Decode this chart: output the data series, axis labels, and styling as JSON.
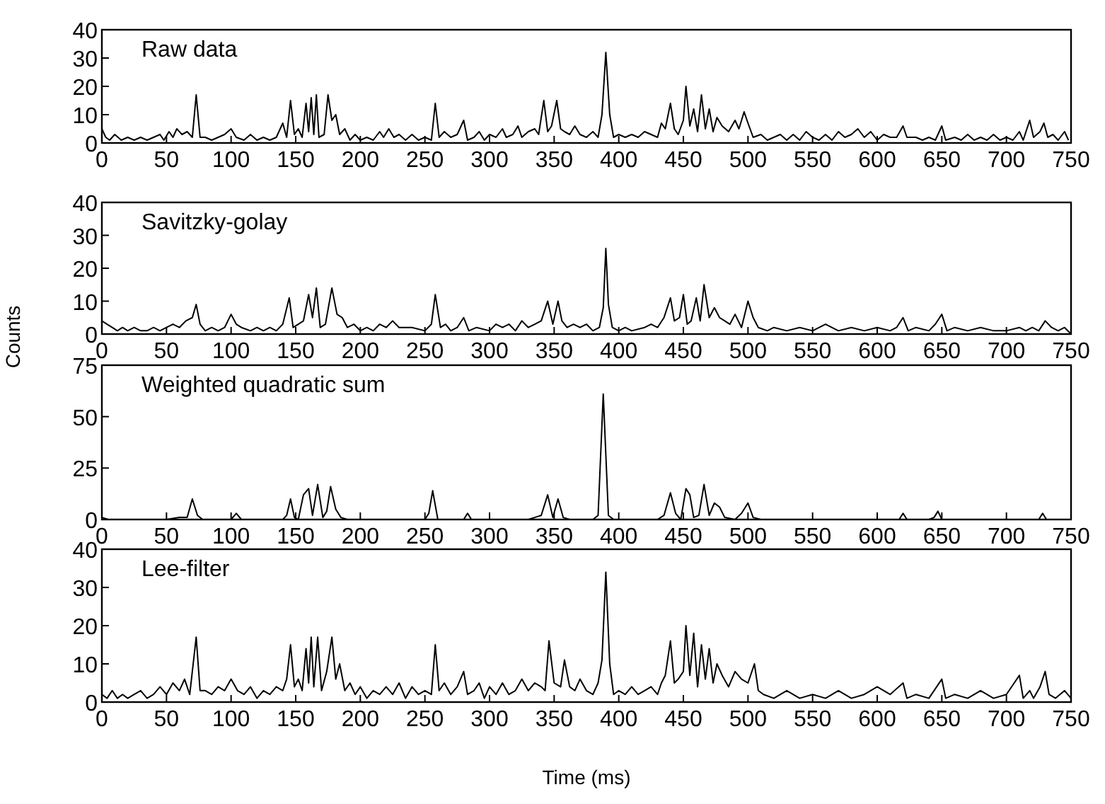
{
  "chart_data": [
    {
      "type": "line",
      "title": "Raw data",
      "xlim": [
        0,
        750
      ],
      "ylim": [
        0,
        40
      ],
      "xticks": [
        0,
        50,
        100,
        150,
        200,
        250,
        300,
        350,
        400,
        450,
        500,
        550,
        600,
        650,
        700,
        750
      ],
      "yticks": [
        0,
        10,
        20,
        30,
        40
      ],
      "grid": false,
      "x": [
        0,
        3,
        6,
        10,
        15,
        20,
        25,
        30,
        35,
        40,
        45,
        48,
        52,
        55,
        58,
        62,
        66,
        70,
        73,
        76,
        80,
        85,
        90,
        95,
        100,
        104,
        110,
        115,
        120,
        125,
        130,
        135,
        140,
        143,
        146,
        149,
        152,
        155,
        158,
        160,
        162,
        164,
        166,
        168,
        172,
        175,
        178,
        181,
        184,
        188,
        192,
        196,
        200,
        205,
        210,
        215,
        218,
        222,
        226,
        230,
        235,
        240,
        245,
        250,
        255,
        258,
        261,
        265,
        270,
        275,
        280,
        283,
        288,
        292,
        296,
        300,
        305,
        310,
        313,
        318,
        322,
        325,
        330,
        335,
        338,
        342,
        345,
        348,
        352,
        355,
        358,
        362,
        366,
        370,
        375,
        380,
        384,
        387,
        390,
        393,
        396,
        400,
        405,
        410,
        415,
        420,
        425,
        430,
        433,
        436,
        440,
        443,
        446,
        450,
        452,
        455,
        458,
        461,
        464,
        467,
        470,
        473,
        476,
        480,
        485,
        490,
        493,
        497,
        500,
        504,
        510,
        515,
        520,
        525,
        530,
        535,
        540,
        545,
        550,
        555,
        560,
        565,
        570,
        575,
        580,
        585,
        590,
        595,
        600,
        605,
        610,
        615,
        620,
        623,
        630,
        635,
        640,
        645,
        650,
        653,
        660,
        665,
        670,
        675,
        680,
        685,
        690,
        695,
        700,
        705,
        710,
        713,
        718,
        721,
        726,
        729,
        732,
        736,
        740,
        745,
        748
      ],
      "series": [
        {
          "color": "#000000",
          "values": [
            5,
            2,
            1,
            3,
            1,
            2,
            1,
            2,
            1,
            2,
            3,
            1,
            4,
            2,
            5,
            3,
            4,
            2,
            17,
            2,
            2,
            1,
            2,
            3,
            5,
            2,
            1,
            3,
            1,
            2,
            1,
            2,
            7,
            2,
            15,
            3,
            5,
            2,
            14,
            4,
            16,
            3,
            17,
            2,
            3,
            17,
            8,
            10,
            3,
            5,
            1,
            3,
            1,
            2,
            1,
            4,
            2,
            5,
            2,
            3,
            1,
            3,
            1,
            2,
            1,
            14,
            2,
            4,
            2,
            3,
            8,
            1,
            2,
            4,
            1,
            3,
            2,
            5,
            2,
            3,
            6,
            2,
            4,
            5,
            3,
            15,
            4,
            6,
            15,
            5,
            4,
            3,
            6,
            3,
            2,
            4,
            2,
            10,
            32,
            10,
            2,
            3,
            2,
            3,
            2,
            4,
            3,
            2,
            7,
            5,
            14,
            5,
            3,
            8,
            20,
            6,
            12,
            4,
            17,
            5,
            12,
            4,
            9,
            6,
            4,
            8,
            5,
            11,
            7,
            2,
            3,
            1,
            2,
            3,
            1,
            3,
            1,
            4,
            2,
            1,
            3,
            1,
            4,
            2,
            3,
            5,
            2,
            4,
            1,
            3,
            2,
            2,
            6,
            2,
            2,
            1,
            2,
            1,
            6,
            1,
            2,
            1,
            3,
            1,
            2,
            1,
            3,
            1,
            2,
            1,
            4,
            1,
            8,
            2,
            4,
            7,
            2,
            3,
            1,
            4,
            1
          ]
        }
      ]
    },
    {
      "type": "line",
      "title": "Savitzky-golay",
      "ylabel": "Counts",
      "xlim": [
        0,
        750
      ],
      "ylim": [
        0,
        40
      ],
      "xticks": [
        0,
        50,
        100,
        150,
        200,
        250,
        300,
        350,
        400,
        450,
        500,
        550,
        600,
        650,
        700,
        750
      ],
      "yticks": [
        0,
        10,
        20,
        30,
        40
      ],
      "grid": false,
      "x": [
        0,
        4,
        8,
        12,
        16,
        20,
        25,
        30,
        35,
        40,
        45,
        50,
        55,
        60,
        65,
        70,
        73,
        76,
        80,
        85,
        90,
        95,
        100,
        104,
        108,
        115,
        120,
        125,
        130,
        135,
        140,
        145,
        148,
        152,
        156,
        160,
        163,
        166,
        169,
        173,
        178,
        182,
        186,
        190,
        195,
        200,
        205,
        210,
        215,
        220,
        225,
        230,
        240,
        250,
        255,
        258,
        262,
        266,
        270,
        275,
        280,
        284,
        290,
        300,
        305,
        310,
        315,
        320,
        325,
        330,
        335,
        340,
        345,
        349,
        353,
        356,
        360,
        365,
        370,
        375,
        380,
        385,
        388,
        390,
        392,
        395,
        400,
        405,
        410,
        420,
        425,
        430,
        435,
        440,
        443,
        447,
        450,
        453,
        456,
        460,
        463,
        466,
        470,
        474,
        478,
        482,
        486,
        490,
        495,
        500,
        504,
        508,
        515,
        520,
        530,
        540,
        550,
        560,
        570,
        580,
        590,
        600,
        610,
        615,
        620,
        624,
        630,
        640,
        645,
        650,
        654,
        660,
        670,
        680,
        690,
        700,
        710,
        715,
        720,
        725,
        730,
        735,
        740,
        745,
        750
      ],
      "series": [
        {
          "color": "#000000",
          "values": [
            4,
            3,
            2,
            1,
            2,
            1,
            2,
            1,
            1,
            2,
            1,
            2,
            3,
            2,
            4,
            5,
            9,
            3,
            1,
            2,
            1,
            2,
            6,
            3,
            2,
            1,
            2,
            1,
            2,
            1,
            3,
            11,
            2,
            3,
            4,
            12,
            5,
            14,
            2,
            3,
            14,
            6,
            5,
            2,
            3,
            1,
            2,
            1,
            3,
            2,
            4,
            2,
            2,
            1,
            3,
            12,
            2,
            3,
            1,
            2,
            5,
            1,
            2,
            1,
            3,
            2,
            3,
            1,
            4,
            2,
            3,
            4,
            10,
            3,
            10,
            4,
            2,
            3,
            2,
            3,
            1,
            2,
            8,
            26,
            9,
            2,
            1,
            2,
            1,
            2,
            3,
            2,
            5,
            11,
            4,
            5,
            12,
            3,
            4,
            11,
            4,
            15,
            5,
            8,
            5,
            4,
            3,
            6,
            2,
            10,
            5,
            2,
            1,
            2,
            1,
            2,
            1,
            3,
            1,
            2,
            1,
            2,
            1,
            2,
            5,
            1,
            2,
            1,
            3,
            6,
            1,
            2,
            1,
            2,
            1,
            1,
            2,
            1,
            2,
            1,
            4,
            2,
            1,
            2,
            0
          ]
        }
      ]
    },
    {
      "type": "line",
      "title": "Weighted quadratic sum",
      "xlim": [
        0,
        750
      ],
      "ylim": [
        0,
        75
      ],
      "xticks": [
        0,
        50,
        100,
        150,
        200,
        250,
        300,
        350,
        400,
        450,
        500,
        550,
        600,
        650,
        700,
        750
      ],
      "yticks": [
        0,
        25,
        50,
        75
      ],
      "grid": false,
      "x": [
        0,
        5,
        50,
        60,
        66,
        70,
        74,
        78,
        100,
        104,
        108,
        140,
        143,
        146,
        149,
        152,
        156,
        160,
        163,
        167,
        171,
        174,
        177,
        181,
        185,
        190,
        250,
        253,
        256,
        260,
        280,
        283,
        286,
        330,
        335,
        340,
        345,
        349,
        353,
        357,
        362,
        370,
        380,
        384,
        388,
        392,
        396,
        420,
        430,
        435,
        440,
        444,
        448,
        452,
        455,
        458,
        462,
        466,
        470,
        474,
        478,
        482,
        490,
        495,
        500,
        504,
        510,
        600,
        617,
        620,
        623,
        640,
        644,
        647,
        650,
        700,
        725,
        728,
        731,
        750
      ],
      "series": [
        {
          "color": "#000000",
          "values": [
            1,
            0,
            0,
            1,
            1,
            10,
            2,
            0,
            0,
            3,
            0,
            0,
            2,
            10,
            1,
            0,
            12,
            15,
            2,
            17,
            1,
            4,
            16,
            5,
            1,
            0,
            0,
            3,
            14,
            0,
            0,
            3,
            0,
            0,
            1,
            2,
            12,
            1,
            10,
            1,
            0,
            0,
            0,
            2,
            61,
            2,
            0,
            0,
            0,
            2,
            13,
            3,
            0,
            15,
            12,
            1,
            2,
            17,
            2,
            8,
            6,
            1,
            0,
            3,
            8,
            1,
            0,
            0,
            0,
            3,
            0,
            0,
            1,
            4,
            0,
            0,
            0,
            3,
            0,
            0
          ]
        }
      ]
    },
    {
      "type": "line",
      "title": "Lee-filter",
      "xlabel": "Time (ms)",
      "xlim": [
        0,
        750
      ],
      "ylim": [
        0,
        40
      ],
      "xticks": [
        0,
        50,
        100,
        150,
        200,
        250,
        300,
        350,
        400,
        450,
        500,
        550,
        600,
        650,
        700,
        750
      ],
      "yticks": [
        0,
        10,
        20,
        30,
        40
      ],
      "grid": false,
      "x": [
        0,
        4,
        8,
        12,
        16,
        20,
        25,
        30,
        35,
        40,
        45,
        50,
        55,
        60,
        64,
        68,
        73,
        76,
        80,
        85,
        90,
        95,
        100,
        105,
        110,
        115,
        120,
        125,
        130,
        135,
        140,
        143,
        146,
        149,
        152,
        155,
        158,
        160,
        162,
        164,
        167,
        170,
        174,
        178,
        181,
        184,
        188,
        192,
        196,
        200,
        205,
        210,
        215,
        220,
        225,
        230,
        235,
        240,
        245,
        250,
        255,
        258,
        261,
        265,
        270,
        275,
        280,
        283,
        288,
        292,
        296,
        300,
        305,
        310,
        315,
        320,
        325,
        330,
        335,
        340,
        343,
        346,
        350,
        355,
        358,
        362,
        366,
        370,
        375,
        380,
        384,
        387,
        390,
        393,
        396,
        400,
        405,
        410,
        415,
        420,
        425,
        430,
        433,
        436,
        440,
        443,
        446,
        450,
        452,
        455,
        458,
        461,
        464,
        467,
        470,
        473,
        476,
        480,
        485,
        490,
        495,
        500,
        505,
        508,
        512,
        520,
        530,
        540,
        550,
        560,
        570,
        580,
        590,
        600,
        610,
        620,
        623,
        630,
        640,
        650,
        653,
        660,
        670,
        680,
        690,
        700,
        710,
        713,
        718,
        721,
        726,
        730,
        733,
        738,
        745,
        750
      ],
      "series": [
        {
          "color": "#000000",
          "values": [
            2,
            1,
            3,
            1,
            2,
            1,
            2,
            3,
            1,
            2,
            4,
            2,
            5,
            3,
            6,
            2,
            17,
            3,
            3,
            2,
            4,
            3,
            6,
            3,
            2,
            4,
            1,
            3,
            2,
            4,
            3,
            6,
            15,
            4,
            6,
            3,
            14,
            5,
            17,
            4,
            17,
            3,
            8,
            17,
            6,
            10,
            3,
            5,
            2,
            4,
            1,
            3,
            2,
            4,
            2,
            5,
            1,
            4,
            2,
            3,
            2,
            15,
            3,
            5,
            2,
            4,
            8,
            2,
            3,
            5,
            1,
            4,
            2,
            5,
            2,
            3,
            6,
            3,
            5,
            4,
            3,
            16,
            5,
            4,
            11,
            4,
            3,
            6,
            3,
            2,
            5,
            11,
            34,
            10,
            2,
            3,
            2,
            4,
            2,
            3,
            4,
            2,
            5,
            7,
            16,
            5,
            6,
            8,
            20,
            7,
            18,
            4,
            15,
            6,
            14,
            5,
            10,
            7,
            4,
            8,
            6,
            5,
            10,
            3,
            2,
            1,
            3,
            1,
            2,
            1,
            3,
            1,
            2,
            4,
            2,
            5,
            1,
            2,
            1,
            6,
            1,
            2,
            1,
            3,
            1,
            2,
            7,
            1,
            3,
            1,
            4,
            8,
            2,
            1,
            3,
            1
          ]
        }
      ]
    }
  ]
}
